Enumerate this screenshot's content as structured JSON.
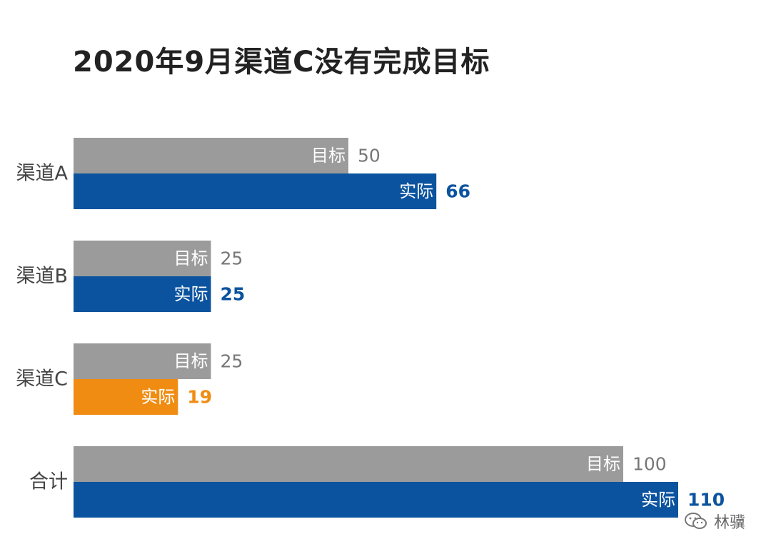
{
  "chart_data": {
    "type": "bar",
    "orientation": "horizontal",
    "title": "2020年9月渠道C没有完成目标",
    "categories": [
      "渠道A",
      "渠道B",
      "渠道C",
      "合计"
    ],
    "series": [
      {
        "name": "目标",
        "values": [
          50,
          25,
          25,
          100
        ]
      },
      {
        "name": "实际",
        "values": [
          66,
          25,
          19,
          110
        ]
      }
    ],
    "xlim": [
      0,
      110
    ],
    "grid": false,
    "legend": "none",
    "colors": {
      "target": "#9b9b9b",
      "actual": "#0b539f",
      "actual_missed": "#f08c12",
      "target_value_text": "#777777"
    }
  },
  "watermark": {
    "text": "林骥"
  }
}
